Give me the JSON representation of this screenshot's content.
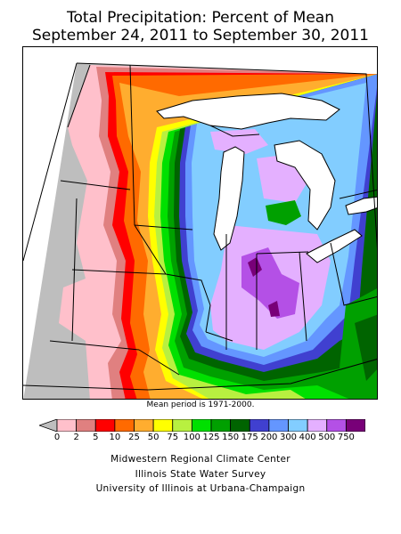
{
  "title_line1": "Total Precipitation: Percent of Mean",
  "title_line2": "September 24, 2011 to September 30, 2011",
  "mean_period_note": "Mean period is 1971-2000.",
  "legend": {
    "labels": [
      "0",
      "2",
      "5",
      "10",
      "25",
      "50",
      "75",
      "100",
      "125",
      "150",
      "175",
      "200",
      "300",
      "400",
      "500",
      "750"
    ],
    "colors": [
      "#bebebe",
      "#ffc0cb",
      "#e08080",
      "#ff0000",
      "#ff6a00",
      "#ffad2f",
      "#ffff00",
      "#b8f040",
      "#00e000",
      "#00a000",
      "#006400",
      "#4040d0",
      "#6496ff",
      "#82cdff",
      "#e4b0ff",
      "#b450e6",
      "#780078"
    ]
  },
  "credits": {
    "line1": "Midwestern Regional Climate Center",
    "line2": "Illinois State Water Survey",
    "line3": "University of Illinois at Urbana-Champaign"
  },
  "map_fill_colors": {
    "no_data": "#bebebe",
    "pct_0_2": "#ffc0cb",
    "pct_2_5": "#e08080",
    "pct_5_10": "#ff0000",
    "pct_10_25": "#ff6a00",
    "pct_25_50": "#ffad2f",
    "pct_50_75": "#ffff00",
    "pct_75_100": "#b8f040",
    "pct_100_125": "#00e000",
    "pct_125_150": "#00a000",
    "pct_150_175": "#006400",
    "pct_175_200": "#4040d0",
    "pct_200_300": "#6496ff",
    "pct_300_400": "#82cdff",
    "pct_400_500": "#e4b0ff",
    "pct_500_750": "#b450e6",
    "pct_750_plus": "#780078",
    "lakes": "#ffffff"
  }
}
